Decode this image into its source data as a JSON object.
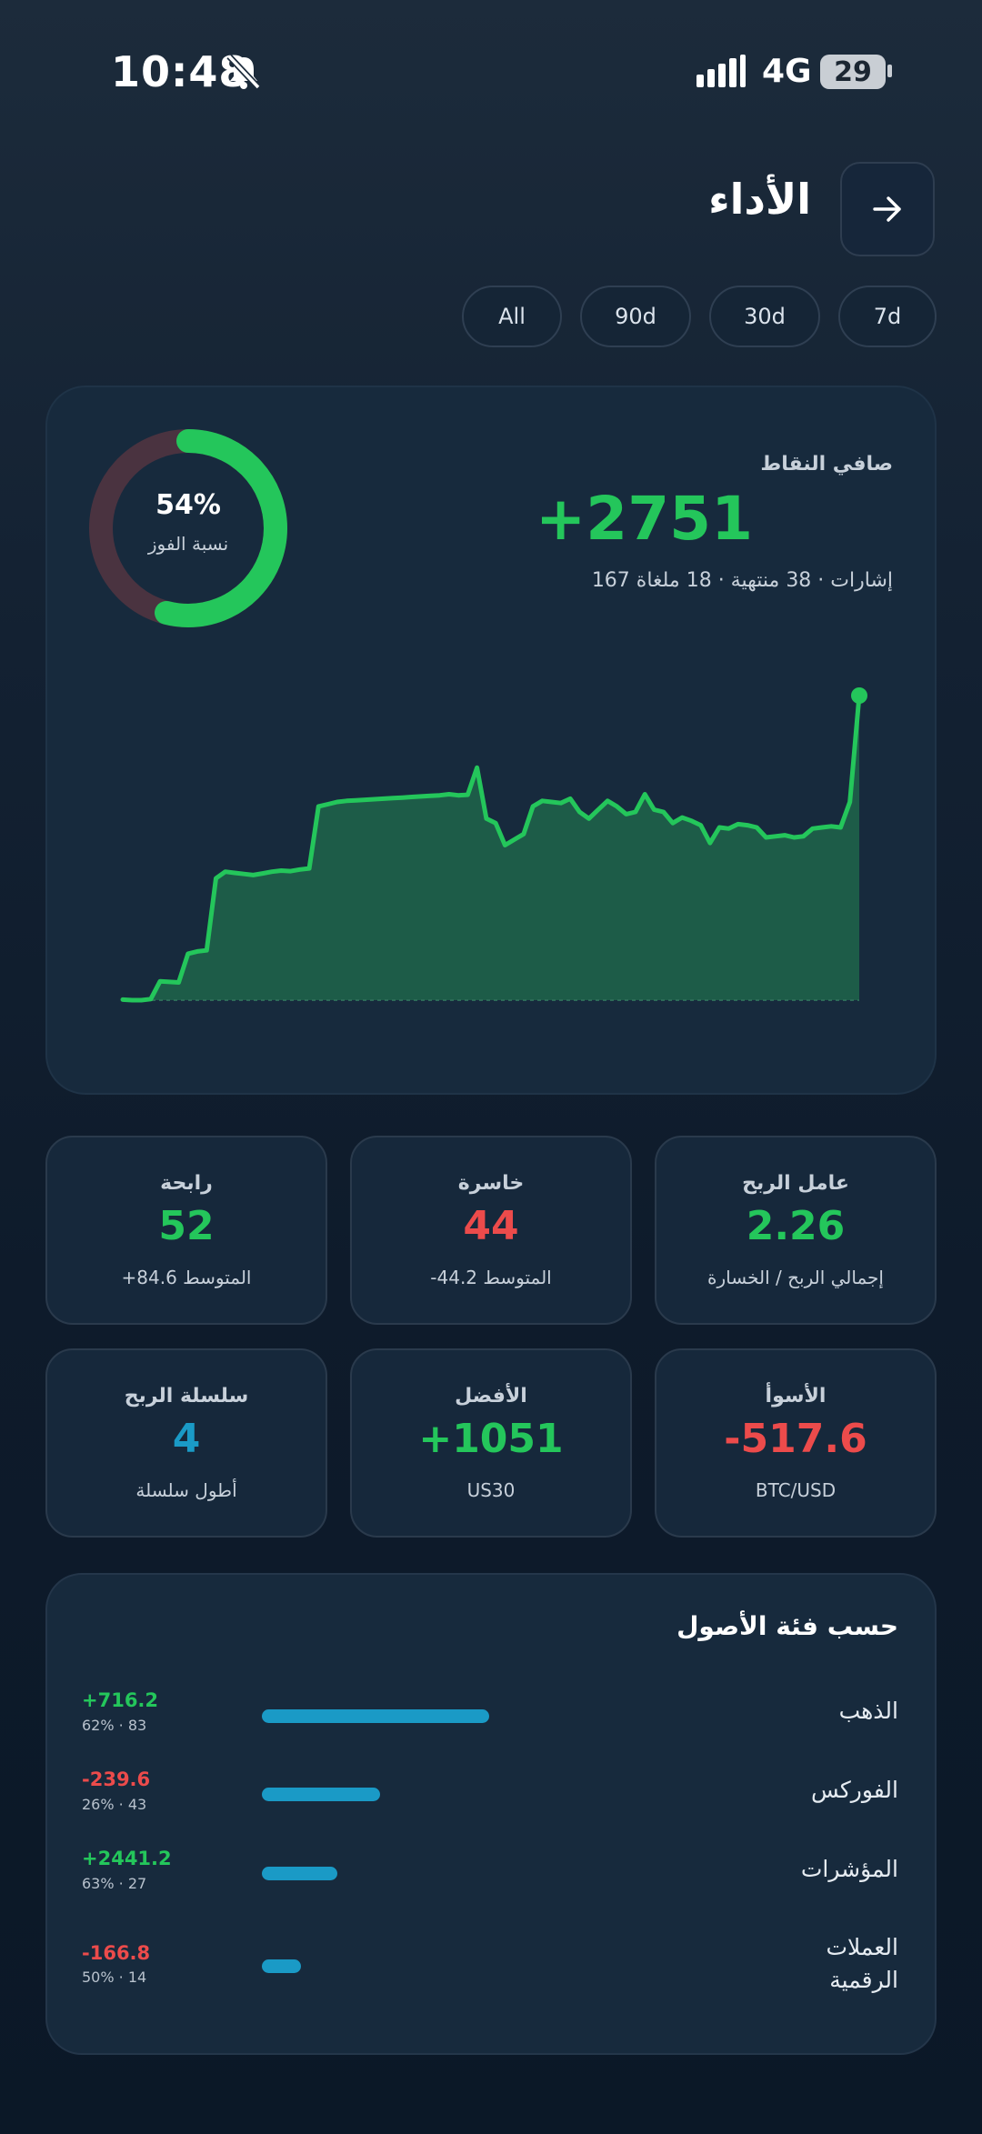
{
  "status_bar": {
    "time": "10:48",
    "network": "4G",
    "battery": "29",
    "icons": [
      "bell-muted-icon",
      "signal-icon"
    ]
  },
  "header": {
    "title": "الأداء",
    "back_icon": "arrow-right-icon"
  },
  "range_tabs": [
    {
      "label": "All",
      "active": true
    },
    {
      "label": "90d",
      "active": false
    },
    {
      "label": "30d",
      "active": false
    },
    {
      "label": "7d",
      "active": false
    }
  ],
  "summary": {
    "net_label": "صافي النقاط",
    "net_value": "+2751",
    "net_sub": "167 إشارات · 38 منتهية · 18 ملغاة",
    "win_rate": 54,
    "win_rate_text": "54%",
    "win_rate_label": "نسبة الفوز"
  },
  "chart_data": {
    "type": "area",
    "x": [
      0,
      1,
      2,
      3,
      4,
      5,
      6,
      7,
      8,
      9,
      10,
      11,
      12,
      13,
      14,
      15,
      16,
      17,
      18,
      19,
      20,
      21,
      22,
      23,
      24,
      25,
      26,
      27,
      28,
      29,
      30,
      31,
      32,
      33,
      34,
      35,
      36,
      37,
      38,
      39,
      40,
      41,
      42,
      43,
      44,
      45,
      46,
      47,
      48,
      49,
      50,
      51,
      52,
      53,
      54,
      55,
      56,
      57,
      58,
      59,
      60,
      61,
      62,
      63,
      64,
      65,
      66,
      67,
      68,
      69,
      70,
      71,
      72,
      73,
      74,
      75,
      76,
      77,
      78,
      79
    ],
    "values": [
      5,
      0,
      0,
      10,
      170,
      165,
      160,
      420,
      440,
      450,
      1100,
      1160,
      1150,
      1140,
      1130,
      1145,
      1160,
      1170,
      1165,
      1180,
      1190,
      1750,
      1770,
      1790,
      1800,
      1805,
      1810,
      1815,
      1820,
      1825,
      1830,
      1835,
      1840,
      1845,
      1850,
      1860,
      1850,
      1855,
      2100,
      1640,
      1600,
      1400,
      1450,
      1500,
      1750,
      1800,
      1790,
      1780,
      1820,
      1700,
      1640,
      1720,
      1800,
      1750,
      1680,
      1700,
      1860,
      1720,
      1700,
      1600,
      1650,
      1620,
      1580,
      1420,
      1560,
      1550,
      1590,
      1580,
      1560,
      1470,
      1480,
      1490,
      1470,
      1480,
      1550,
      1560,
      1570,
      1560,
      1790,
      2751
    ],
    "series_color": "#24c65b",
    "grid": false
  },
  "stats": [
    {
      "label": "عامل الربح",
      "value": "2.26",
      "sub": "إجمالي الربح / الخسارة",
      "color": "green"
    },
    {
      "label": "خاسرة",
      "value": "44",
      "sub": "-44.2 المتوسط",
      "color": "red"
    },
    {
      "label": "رابحة",
      "value": "52",
      "sub": "+84.6 المتوسط",
      "color": "green"
    },
    {
      "label": "الأسوأ",
      "value": "-517.6",
      "sub": "BTC/USD",
      "color": "red"
    },
    {
      "label": "الأفضل",
      "value": "+1051",
      "sub": "US30",
      "color": "green"
    },
    {
      "label": "سلسلة الربح",
      "value": "4",
      "sub": "أطول سلسلة",
      "color": "blue"
    }
  ],
  "assets": {
    "title": "حسب فئة الأصول",
    "items": [
      {
        "name": "الذهب",
        "value": "+716.2",
        "sub": "62% · 83",
        "share": 1.0,
        "color": "green"
      },
      {
        "name": "الفوركس",
        "value": "-239.6",
        "sub": "26% · 43",
        "share": 0.52,
        "color": "red"
      },
      {
        "name": "المؤشرات",
        "value": "+2441.2",
        "sub": "63% · 27",
        "share": 0.33,
        "color": "green"
      },
      {
        "name": "العملات الرقمية",
        "value": "-166.8",
        "sub": "50% · 14",
        "share": 0.17,
        "color": "red"
      }
    ]
  }
}
